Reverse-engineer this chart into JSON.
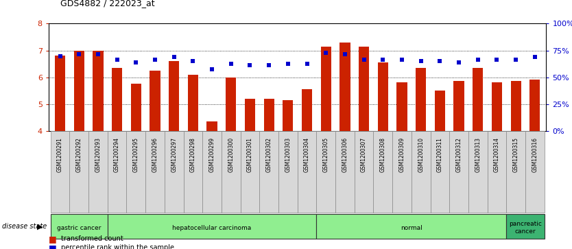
{
  "title": "GDS4882 / 222023_at",
  "samples": [
    "GSM1200291",
    "GSM1200292",
    "GSM1200293",
    "GSM1200294",
    "GSM1200295",
    "GSM1200296",
    "GSM1200297",
    "GSM1200298",
    "GSM1200299",
    "GSM1200300",
    "GSM1200301",
    "GSM1200302",
    "GSM1200303",
    "GSM1200304",
    "GSM1200305",
    "GSM1200306",
    "GSM1200307",
    "GSM1200308",
    "GSM1200309",
    "GSM1200310",
    "GSM1200311",
    "GSM1200312",
    "GSM1200313",
    "GSM1200314",
    "GSM1200315",
    "GSM1200316"
  ],
  "bar_values": [
    6.8,
    7.0,
    7.0,
    6.35,
    5.75,
    6.25,
    6.6,
    6.1,
    4.35,
    6.0,
    5.2,
    5.2,
    5.15,
    5.55,
    7.15,
    7.3,
    7.15,
    6.55,
    5.8,
    6.35,
    5.5,
    5.85,
    6.35,
    5.8,
    5.85,
    5.9
  ],
  "percentile_values": [
    6.78,
    6.85,
    6.85,
    6.65,
    6.55,
    6.65,
    6.75,
    6.6,
    6.3,
    6.5,
    6.45,
    6.45,
    6.5,
    6.5,
    6.9,
    6.85,
    6.65,
    6.65,
    6.65,
    6.6,
    6.6,
    6.55,
    6.65,
    6.65,
    6.65,
    6.75
  ],
  "bar_color": "#cc2200",
  "dot_color": "#0000cc",
  "ylim_left": [
    4,
    8
  ],
  "yticks_left": [
    4,
    5,
    6,
    7,
    8
  ],
  "ytick_labels_right": [
    "0%",
    "25%",
    "50%",
    "75%",
    "100%"
  ],
  "groups": [
    {
      "label": "gastric cancer",
      "start": 0,
      "end": 3
    },
    {
      "label": "hepatocellular carcinoma",
      "start": 3,
      "end": 14
    },
    {
      "label": "normal",
      "start": 14,
      "end": 24
    },
    {
      "label": "pancreatic\ncancer",
      "start": 24,
      "end": 26
    }
  ],
  "disease_state_label": "disease state",
  "legend_bar_label": "transformed count",
  "legend_dot_label": "percentile rank within the sample",
  "background_color": "#ffffff"
}
